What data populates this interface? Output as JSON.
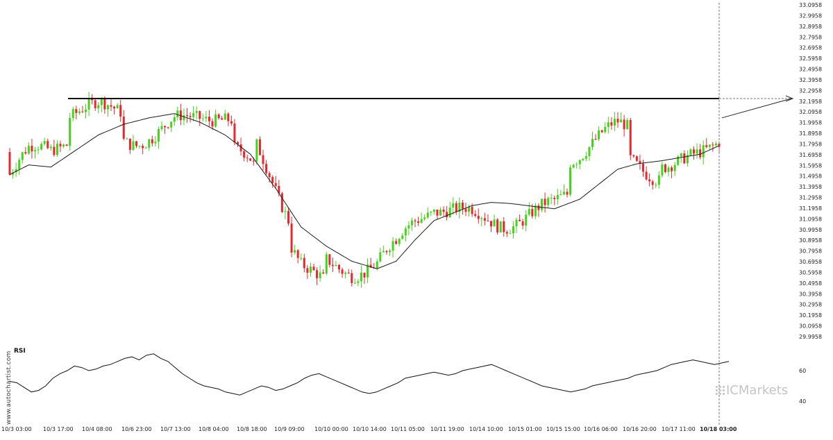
{
  "chart_data": [
    {
      "type": "candlestick",
      "ylim": [
        29.9958,
        33.0958
      ],
      "y_ticks": [
        "33.0958",
        "32.9958",
        "32.8958",
        "32.7958",
        "32.6958",
        "32.5958",
        "32.4958",
        "32.3958",
        "32.2958",
        "32.1958",
        "32.0958",
        "31.9958",
        "31.8958",
        "31.7958",
        "31.6958",
        "31.5958",
        "31.4958",
        "31.3958",
        "31.2958",
        "31.1958",
        "31.0958",
        "30.9958",
        "30.8958",
        "30.7958",
        "30.6958",
        "30.5958",
        "30.4958",
        "30.3958",
        "30.2958",
        "30.1958",
        "30.0958",
        "29.9958"
      ],
      "x_ticks": [
        "10/3 03:00",
        "10/3 17:00",
        "10/4 08:00",
        "10/6 23:00",
        "10/7 13:00",
        "10/8 04:00",
        "10/8 18:00",
        "10/9 09:00",
        "10/10 00:00",
        "10/10 14:00",
        "10/11 05:00",
        "10/11 19:00",
        "10/14 10:00",
        "10/15 01:00",
        "10/15 15:00",
        "10/16 06:00",
        "10/16 20:00",
        "10/17 11:00",
        "10/18 03:00"
      ],
      "highlighted_x_tick": "10/18 03:00",
      "moving_average_anchors": [
        [
          0,
          31.51
        ],
        [
          6,
          31.6
        ],
        [
          13,
          31.58
        ],
        [
          20,
          31.72
        ],
        [
          28,
          31.88
        ],
        [
          36,
          31.98
        ],
        [
          44,
          32.04
        ],
        [
          52,
          32.08
        ],
        [
          60,
          32.0
        ],
        [
          68,
          31.88
        ],
        [
          76,
          31.7
        ],
        [
          84,
          31.38
        ],
        [
          92,
          31.02
        ],
        [
          100,
          30.84
        ],
        [
          108,
          30.7
        ],
        [
          116,
          30.63
        ],
        [
          122,
          30.7
        ],
        [
          128,
          30.9
        ],
        [
          134,
          31.08
        ],
        [
          140,
          31.15
        ],
        [
          146,
          31.22
        ],
        [
          152,
          31.25
        ],
        [
          158,
          31.24
        ],
        [
          166,
          31.21
        ],
        [
          172,
          31.19
        ],
        [
          180,
          31.28
        ],
        [
          186,
          31.42
        ],
        [
          192,
          31.56
        ],
        [
          198,
          31.61
        ],
        [
          206,
          31.64
        ],
        [
          212,
          31.67
        ],
        [
          218,
          31.7
        ],
        [
          224,
          31.78
        ]
      ],
      "resistance_level": 32.22,
      "forecast_arrow": {
        "from": 32.04,
        "to": 32.22
      },
      "volatility_note": "candles generated from approximate path"
    },
    {
      "type": "line",
      "title": "RSI",
      "ylim": [
        30,
        80
      ],
      "y_ticks": [
        "60",
        "40"
      ],
      "values": [
        53,
        52,
        49,
        46,
        47,
        50,
        55,
        58,
        60,
        63,
        62,
        60,
        61,
        63,
        64,
        66,
        68,
        69,
        67,
        70,
        71,
        68,
        66,
        62,
        58,
        55,
        52,
        50,
        49,
        48,
        46,
        45,
        44,
        46,
        48,
        50,
        49,
        47,
        48,
        50,
        52,
        55,
        57,
        58,
        56,
        54,
        52,
        50,
        48,
        46,
        45,
        46,
        48,
        50,
        52,
        55,
        56,
        57,
        58,
        59,
        58,
        57,
        58,
        60,
        61,
        62,
        63,
        64,
        62,
        60,
        58,
        56,
        54,
        52,
        50,
        49,
        48,
        47,
        46,
        47,
        48,
        50,
        51,
        52,
        53,
        54,
        55,
        57,
        58,
        59,
        60,
        62,
        64,
        65,
        66,
        67,
        66,
        65,
        64,
        65,
        66
      ]
    }
  ],
  "labels": {
    "rsi_title": "RSI",
    "side_credit": "www.autochartist.com",
    "watermark": "ICMarkets"
  },
  "colors": {
    "bull": "#44d21a",
    "bear": "#e8262b",
    "ma": "#1a1a1a",
    "resistance": "#111111",
    "grid_text": "#222222",
    "divider": "#888888",
    "rsi_line": "#111111"
  }
}
